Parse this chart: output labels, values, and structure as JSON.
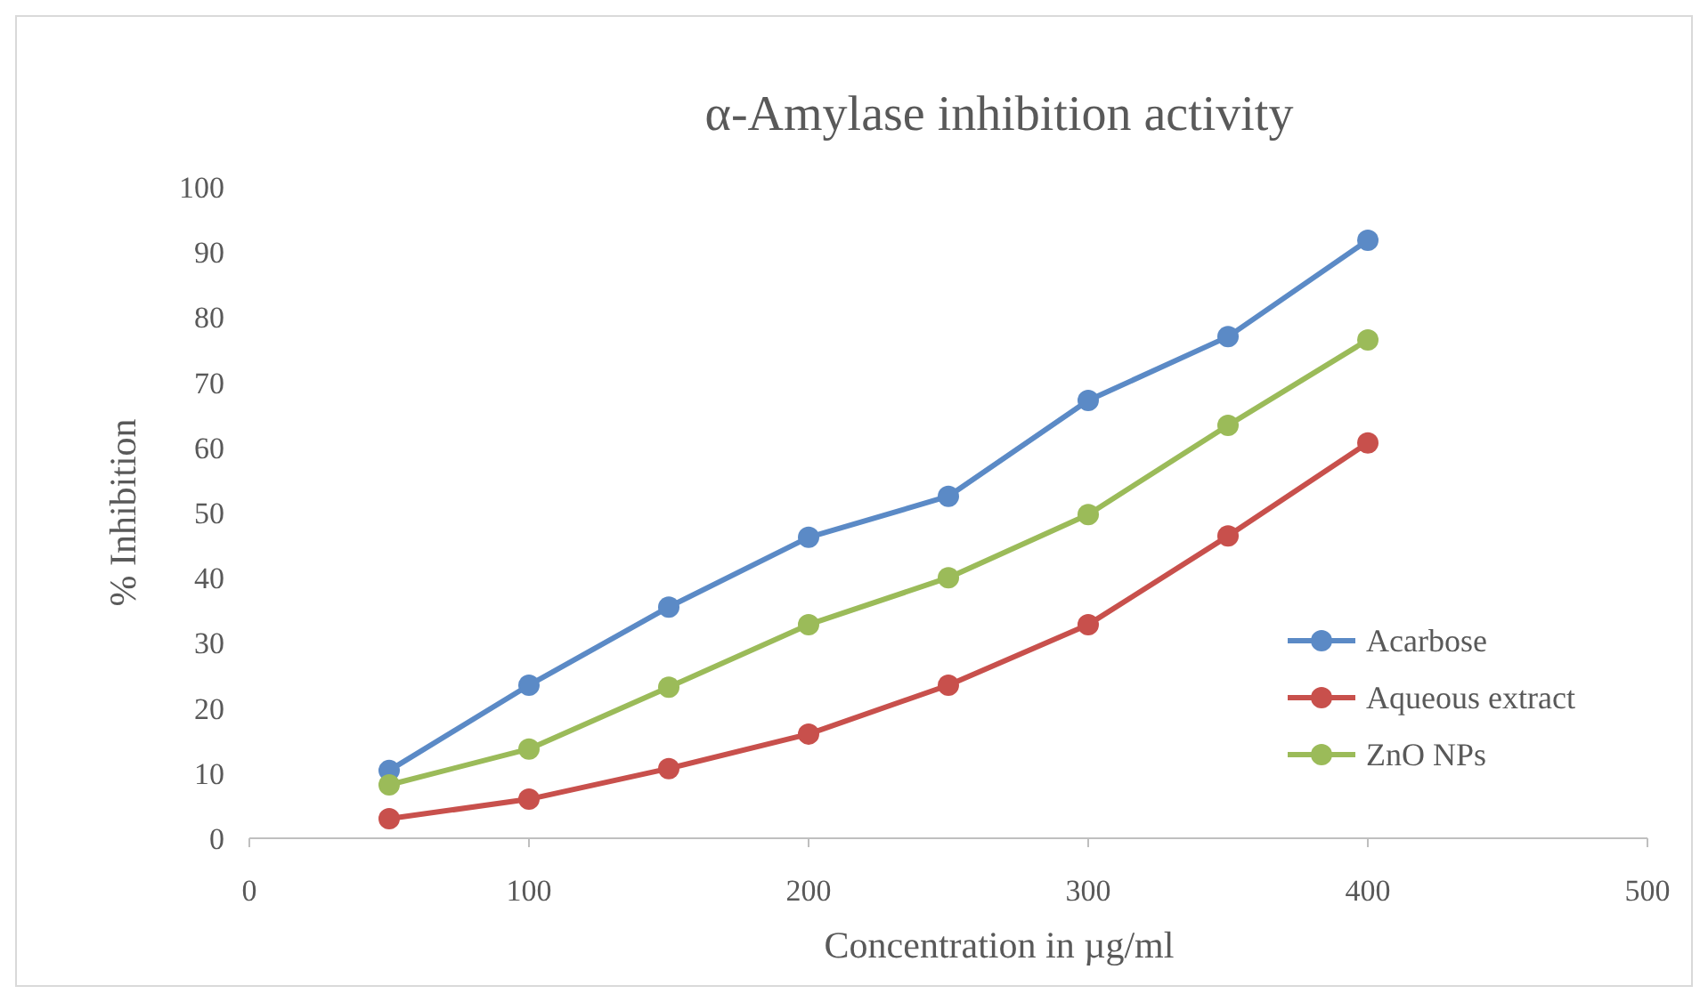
{
  "chart_data": {
    "type": "line",
    "title": "α-Amylase  inhibition  activity",
    "xlabel": "Concentration in µg/ml",
    "ylabel": "%  Inhibition",
    "x": [
      50,
      100,
      150,
      200,
      250,
      300,
      350,
      400
    ],
    "series": [
      {
        "name": "Acarbose",
        "color": "#5b8ac6",
        "values": [
          10.4,
          23.5,
          35.5,
          46.2,
          52.5,
          67.2,
          77,
          91.8
        ]
      },
      {
        "name": "Aqueous extract",
        "color": "#c8504c",
        "values": [
          3,
          6,
          10.7,
          16,
          23.5,
          32.8,
          46.4,
          60.7
        ]
      },
      {
        "name": "ZnO NPs",
        "color": "#9bbb59",
        "values": [
          8.2,
          13.7,
          23.2,
          32.8,
          40,
          49.7,
          63.4,
          76.5
        ]
      }
    ],
    "xlim": [
      0,
      500
    ],
    "xticks": [
      0,
      100,
      200,
      300,
      400,
      500
    ],
    "ylim": [
      0,
      100
    ],
    "yticks": [
      0,
      10,
      20,
      30,
      40,
      50,
      60,
      70,
      80,
      90,
      100
    ],
    "grid": false,
    "legend": "right",
    "marker": "circle",
    "line_style": "solid"
  }
}
